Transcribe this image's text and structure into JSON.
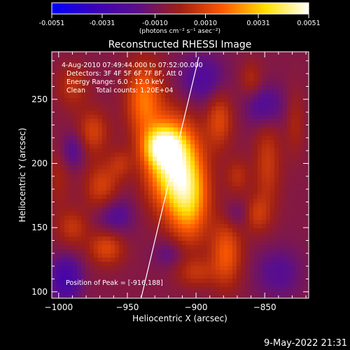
{
  "chart_data": {
    "type": "heatmap",
    "title": "Reconstructed RHESSI Image",
    "xlabel": "Heliocentric X (arcsec)",
    "ylabel": "Heliocentric Y (arcsec)",
    "xlim": [
      -1005,
      -818
    ],
    "ylim": [
      95,
      287
    ],
    "xticks": [
      -1000,
      -950,
      -900,
      -850
    ],
    "yticks": [
      100,
      150,
      200,
      250
    ],
    "colorbar": {
      "min": -0.0051,
      "max": 0.0051,
      "ticks": [
        "-0.0051",
        "-0.0031",
        "-0.0010",
        "0.0010",
        "0.0031",
        "0.0051"
      ],
      "unit_label": "(photons cm⁻² s⁻¹ asec⁻²)",
      "colors": [
        "#0000ff",
        "#3d00b8",
        "#5a0f8a",
        "#9f1f14",
        "#ff5a00",
        "#ffe000",
        "#ffffff"
      ]
    },
    "annotations": [
      "4-Aug-2010 07:49:44.000 to 07:52:00.000",
      "Detectors: 3F 4F 5F 6F 7F 8F, Att 0",
      "Energy Range: 6.0 - 12.0 keV",
      "Clean     Total counts: 1.20E+04"
    ],
    "peak_label": "Position of Peak = [-916,188]",
    "peak": [
      -916,
      188
    ],
    "limb_line": [
      [
        -940,
        95
      ],
      [
        -898,
        283
      ]
    ],
    "blobs": [
      {
        "x": -917,
        "y": 200,
        "sx": 13,
        "sy": 24,
        "value": 0.0051
      },
      {
        "x": -925,
        "y": 213,
        "sx": 9,
        "sy": 10,
        "value": 0.0035
      },
      {
        "x": -905,
        "y": 170,
        "sx": 10,
        "sy": 22,
        "value": 0.0032
      },
      {
        "x": -938,
        "y": 250,
        "sx": 9,
        "sy": 20,
        "value": 0.0026
      },
      {
        "x": -975,
        "y": 225,
        "sx": 8,
        "sy": 12,
        "value": 0.0016
      },
      {
        "x": -968,
        "y": 180,
        "sx": 9,
        "sy": 14,
        "value": 0.0018
      },
      {
        "x": -990,
        "y": 260,
        "sx": 8,
        "sy": 12,
        "value": 0.0012
      },
      {
        "x": -965,
        "y": 135,
        "sx": 9,
        "sy": 10,
        "value": 0.0019
      },
      {
        "x": -990,
        "y": 150,
        "sx": 8,
        "sy": 10,
        "value": 0.0013
      },
      {
        "x": -878,
        "y": 130,
        "sx": 8,
        "sy": 18,
        "value": 0.0022
      },
      {
        "x": -883,
        "y": 235,
        "sx": 7,
        "sy": 16,
        "value": 0.0018
      },
      {
        "x": -848,
        "y": 200,
        "sx": 7,
        "sy": 26,
        "value": 0.0014
      },
      {
        "x": -856,
        "y": 160,
        "sx": 7,
        "sy": 10,
        "value": 0.0013
      },
      {
        "x": -828,
        "y": 232,
        "sx": 5,
        "sy": 18,
        "value": 0.0009
      },
      {
        "x": -900,
        "y": 115,
        "sx": 10,
        "sy": 8,
        "value": 0.0012
      },
      {
        "x": -955,
        "y": 200,
        "sx": 6,
        "sy": 8,
        "value": 0.001
      },
      {
        "x": -870,
        "y": 190,
        "sx": 6,
        "sy": 10,
        "value": 0.0011
      },
      {
        "x": -1000,
        "y": 190,
        "sx": 6,
        "sy": 18,
        "value": 0.0008
      },
      {
        "x": -860,
        "y": 265,
        "sx": 6,
        "sy": 10,
        "value": 0.0011
      },
      {
        "x": -960,
        "y": 160,
        "sx": 10,
        "sy": 12,
        "value": -0.0016
      },
      {
        "x": -995,
        "y": 110,
        "sx": 8,
        "sy": 12,
        "value": -0.0022
      },
      {
        "x": -895,
        "y": 265,
        "sx": 12,
        "sy": 14,
        "value": -0.0016
      },
      {
        "x": -850,
        "y": 245,
        "sx": 10,
        "sy": 12,
        "value": -0.0016
      },
      {
        "x": -990,
        "y": 210,
        "sx": 6,
        "sy": 10,
        "value": -0.0013
      },
      {
        "x": -840,
        "y": 115,
        "sx": 12,
        "sy": 14,
        "value": -0.0012
      },
      {
        "x": -920,
        "y": 130,
        "sx": 8,
        "sy": 8,
        "value": -0.001
      },
      {
        "x": -870,
        "y": 160,
        "sx": 6,
        "sy": 8,
        "value": -0.0009
      }
    ]
  },
  "footer": {
    "timestamp": "9-May-2022 21:31"
  }
}
